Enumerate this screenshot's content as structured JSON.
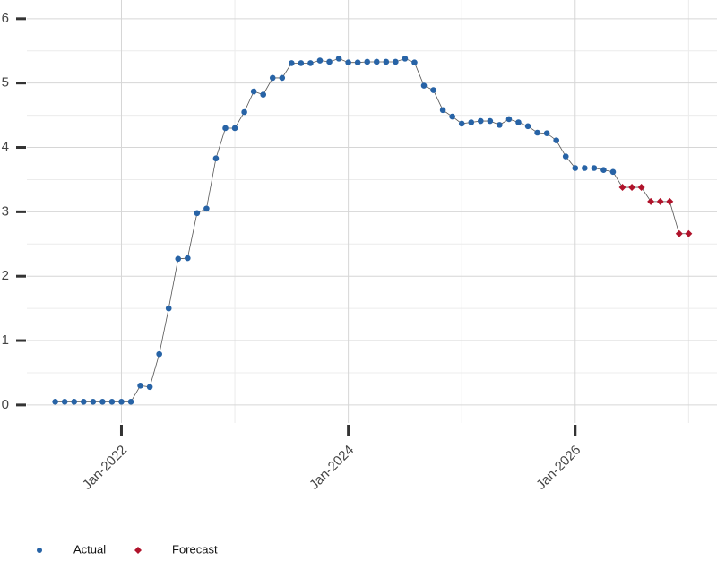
{
  "chart_data": {
    "type": "line",
    "x": [
      "2021-06",
      "2021-07",
      "2021-08",
      "2021-09",
      "2021-10",
      "2021-11",
      "2021-12",
      "2022-01",
      "2022-02",
      "2022-03",
      "2022-04",
      "2022-05",
      "2022-06",
      "2022-07",
      "2022-08",
      "2022-09",
      "2022-10",
      "2022-11",
      "2022-12",
      "2023-01",
      "2023-02",
      "2023-03",
      "2023-04",
      "2023-05",
      "2023-06",
      "2023-07",
      "2023-08",
      "2023-09",
      "2023-10",
      "2023-11",
      "2023-12",
      "2024-01",
      "2024-02",
      "2024-03",
      "2024-04",
      "2024-05",
      "2024-06",
      "2024-07",
      "2024-08",
      "2024-09",
      "2024-10",
      "2024-11",
      "2024-12",
      "2025-01",
      "2025-02",
      "2025-03",
      "2025-04",
      "2025-05",
      "2025-06",
      "2025-07",
      "2025-08",
      "2025-09",
      "2025-10",
      "2025-11",
      "2025-12",
      "2026-01",
      "2026-02",
      "2026-03",
      "2026-04",
      "2026-05",
      "2026-06",
      "2026-07",
      "2026-08",
      "2026-09",
      "2026-10",
      "2026-11",
      "2026-12",
      "2027-01"
    ],
    "series": [
      {
        "name": "Actual",
        "color": "#2763a6",
        "marker": "circle",
        "values": [
          0.05,
          0.05,
          0.05,
          0.05,
          0.05,
          0.05,
          0.05,
          0.05,
          0.05,
          0.3,
          0.28,
          0.79,
          1.5,
          2.27,
          2.28,
          2.98,
          3.05,
          3.83,
          4.3,
          4.3,
          4.55,
          4.87,
          4.82,
          5.08,
          5.08,
          5.31,
          5.31,
          5.31,
          5.35,
          5.33,
          5.38,
          5.32,
          5.32,
          5.33,
          5.33,
          5.33,
          5.33,
          5.38,
          5.32,
          4.96,
          4.89,
          4.58,
          4.48,
          4.37,
          4.39,
          4.41,
          4.41,
          4.35,
          4.44,
          4.39,
          4.33,
          4.23,
          4.22,
          4.11,
          3.86,
          3.68,
          3.68,
          3.68,
          3.65,
          3.62,
          null,
          null,
          null,
          null,
          null,
          null,
          null,
          null
        ]
      },
      {
        "name": "Forecast",
        "color": "#b0132b",
        "marker": "diamond",
        "values": [
          null,
          null,
          null,
          null,
          null,
          null,
          null,
          null,
          null,
          null,
          null,
          null,
          null,
          null,
          null,
          null,
          null,
          null,
          null,
          null,
          null,
          null,
          null,
          null,
          null,
          null,
          null,
          null,
          null,
          null,
          null,
          null,
          null,
          null,
          null,
          null,
          null,
          null,
          null,
          null,
          null,
          null,
          null,
          null,
          null,
          null,
          null,
          null,
          null,
          null,
          null,
          null,
          null,
          null,
          null,
          null,
          null,
          null,
          null,
          null,
          3.38,
          3.38,
          3.38,
          3.16,
          3.16,
          3.16,
          2.66,
          2.66
        ]
      }
    ],
    "line_color": "#555555",
    "xlim": [
      "2021-03",
      "2027-04"
    ],
    "xticks": [
      {
        "value": "2022-01",
        "label": "Jan-2022"
      },
      {
        "value": "2024-01",
        "label": "Jan-2024"
      },
      {
        "value": "2026-01",
        "label": "Jan-2026"
      }
    ],
    "ylim": [
      -0.28,
      6.29
    ],
    "yticks": [
      0,
      1,
      2,
      3,
      4,
      5,
      6
    ],
    "grid": true,
    "minor_grid": true,
    "legend": "bottom-left"
  }
}
